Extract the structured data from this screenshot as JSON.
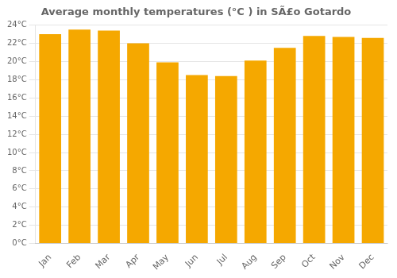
{
  "chart_data": {
    "type": "bar",
    "title": "Average monthly temperatures (°C ) in SÃ£o Gotardo",
    "categories": [
      "Jan",
      "Feb",
      "Mar",
      "Apr",
      "May",
      "Jun",
      "Jul",
      "Aug",
      "Sep",
      "Oct",
      "Nov",
      "Dec"
    ],
    "values": [
      23.0,
      23.5,
      23.4,
      22.0,
      19.9,
      18.5,
      18.4,
      20.1,
      21.5,
      22.8,
      22.7,
      22.6
    ],
    "color": "#F5A800",
    "ylim": [
      0,
      24
    ],
    "yticks": [
      {
        "value": 0,
        "label": "0°C"
      },
      {
        "value": 2,
        "label": "2°C"
      },
      {
        "value": 4,
        "label": "4°C"
      },
      {
        "value": 6,
        "label": "6°C"
      },
      {
        "value": 8,
        "label": "8°C"
      },
      {
        "value": 10,
        "label": "10°C"
      },
      {
        "value": 12,
        "label": "12°C"
      },
      {
        "value": 14,
        "label": "14°C"
      },
      {
        "value": 16,
        "label": "16°C"
      },
      {
        "value": 18,
        "label": "18°C"
      },
      {
        "value": 20,
        "label": "20°C"
      },
      {
        "value": 22,
        "label": "22°C"
      },
      {
        "value": 24,
        "label": "24°C"
      }
    ],
    "grid": true
  }
}
